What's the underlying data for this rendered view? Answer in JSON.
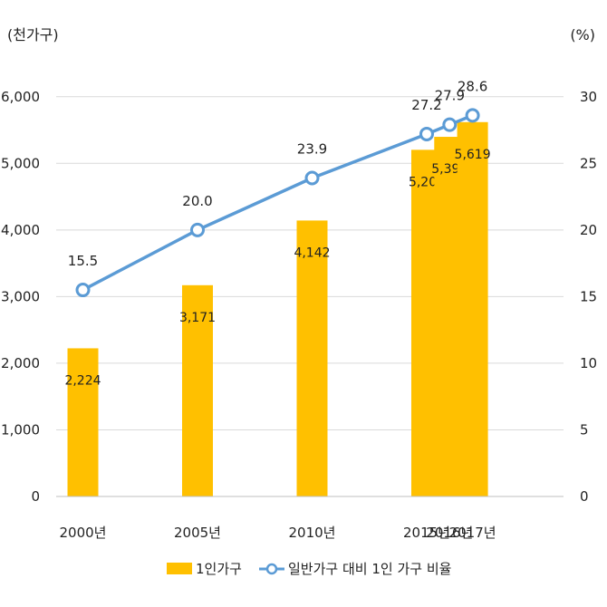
{
  "chart_data": {
    "type": "bar",
    "categories": [
      "2000년",
      "2005년",
      "2010년",
      "2015년",
      "2016년",
      "2017년"
    ],
    "x_years": [
      2000,
      2005,
      2010,
      2015,
      2016,
      2017
    ],
    "series": [
      {
        "name": "1인가구",
        "type": "bar",
        "axis": "left",
        "values": [
          2224,
          3171,
          4142,
          5203,
          5398,
          5619
        ],
        "labels": [
          "2,224",
          "3,171",
          "4,142",
          "5,203",
          "5,398",
          "5,619"
        ],
        "color": "#FFC000"
      },
      {
        "name": "일반가구 대비 1인 가구 비율",
        "type": "line",
        "axis": "right",
        "values": [
          15.5,
          20.0,
          23.9,
          27.2,
          27.9,
          28.6
        ],
        "labels": [
          "15.5",
          "20.0",
          "23.9",
          "27.2",
          "27.9",
          "28.6"
        ],
        "color": "#5B9BD5"
      }
    ],
    "y_left": {
      "unit_label": "(천가구)",
      "ylim": [
        0,
        6500
      ],
      "ticks": [
        0,
        1000,
        2000,
        3000,
        4000,
        5000,
        6000
      ],
      "tick_labels": [
        "0",
        "1,000",
        "2,000",
        "3,000",
        "4,000",
        "5,000",
        "6,000"
      ]
    },
    "y_right": {
      "unit_label": "(%)",
      "ylim": [
        0,
        32.5
      ],
      "ticks": [
        0,
        5,
        10,
        15,
        20,
        25,
        30
      ],
      "tick_labels": [
        "0",
        "5",
        "10",
        "15",
        "20",
        "25",
        "30"
      ]
    },
    "grid": true,
    "legend": "bottom"
  }
}
